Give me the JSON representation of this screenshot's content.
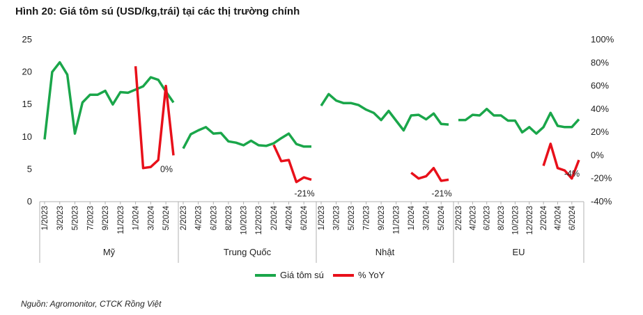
{
  "title": "Hình 20:  Giá tôm sú (USD/kg,trái) tại các thị trường chính",
  "source": "Nguồn: Agromonitor, CTCK Rồng Việt",
  "chart_data": {
    "type": "line",
    "left_axis": {
      "ylim": [
        0,
        25
      ],
      "ticks": [
        "0",
        "5",
        "10",
        "15",
        "20",
        "25"
      ]
    },
    "right_axis": {
      "ylim": [
        -40,
        100
      ],
      "ticks": [
        "-40%",
        "-20%",
        "0%",
        "20%",
        "40%",
        "60%",
        "80%",
        "100%"
      ]
    },
    "legend": {
      "position": "bottom",
      "items": [
        "Giá tôm sú",
        "% YoY"
      ]
    },
    "colors": {
      "price": "#1aa64a",
      "yoy": "#e8101a"
    },
    "groups": [
      {
        "name": "Mỹ",
        "tick_labels": [
          "1/2023",
          "3/2023",
          "5/2023",
          "7/2023",
          "9/2023",
          "11/2023",
          "1/2024",
          "3/2024",
          "5/2024"
        ],
        "price": [
          9.6,
          20.0,
          21.5,
          19.6,
          10.5,
          15.3,
          16.5,
          16.5,
          17.1,
          15.0,
          16.9,
          16.8,
          17.3,
          17.8,
          19.2,
          18.8,
          17.0,
          15.3
        ],
        "yoy": [
          null,
          null,
          null,
          null,
          null,
          null,
          null,
          null,
          null,
          null,
          null,
          null,
          77,
          -11,
          -10,
          -4,
          60,
          0
        ],
        "annotation": "0%"
      },
      {
        "name": "Trung Quốc",
        "tick_labels": [
          "2/2023",
          "4/2023",
          "6/2023",
          "8/2023",
          "10/2023",
          "12/2023",
          "2/2024",
          "4/2024",
          "6/2024"
        ],
        "price": [
          8.2,
          10.4,
          11.0,
          11.5,
          10.5,
          10.6,
          9.3,
          9.1,
          8.7,
          9.4,
          8.7,
          8.6,
          9.0,
          9.8,
          10.5,
          8.9,
          8.5,
          8.5
        ],
        "yoy": [
          null,
          null,
          null,
          null,
          null,
          null,
          null,
          null,
          null,
          null,
          null,
          null,
          9,
          -5,
          -4,
          -23,
          -19,
          -21
        ],
        "annotation": "-21%"
      },
      {
        "name": "Nhật",
        "tick_labels": [
          "1/2023",
          "3/2023",
          "5/2023",
          "7/2023",
          "9/2023",
          "11/2023",
          "1/2024",
          "3/2024",
          "5/2024"
        ],
        "price": [
          14.8,
          16.6,
          15.6,
          15.2,
          15.2,
          14.9,
          14.2,
          13.7,
          12.6,
          14.0,
          12.5,
          11.0,
          13.3,
          13.4,
          12.7,
          13.6,
          12.0,
          11.9
        ],
        "yoy": [
          null,
          null,
          null,
          null,
          null,
          null,
          null,
          null,
          null,
          null,
          null,
          null,
          -15,
          -20,
          -18,
          -11,
          -22,
          -21
        ],
        "annotation": "-21%"
      },
      {
        "name": "EU",
        "tick_labels": [
          "2/2023",
          "4/2023",
          "6/2023",
          "8/2023",
          "10/2023",
          "12/2023",
          "2/2024",
          "4/2024",
          "6/2024"
        ],
        "price": [
          12.6,
          12.6,
          13.4,
          13.3,
          14.3,
          13.3,
          13.3,
          12.5,
          12.5,
          10.7,
          11.5,
          10.5,
          11.5,
          13.7,
          11.7,
          11.5,
          11.5,
          12.7
        ],
        "yoy": [
          null,
          null,
          null,
          null,
          null,
          null,
          null,
          null,
          null,
          null,
          null,
          null,
          -9,
          10,
          -11,
          -13,
          -20,
          -4
        ],
        "annotation": "-4%"
      }
    ]
  }
}
